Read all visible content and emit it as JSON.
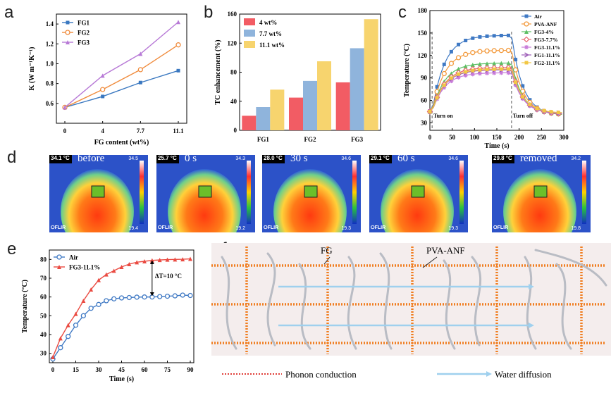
{
  "panel_labels": {
    "a": "a",
    "b": "b",
    "c": "c",
    "d": "d",
    "e": "e",
    "f": "f"
  },
  "colors": {
    "fg1": "#3a78c0",
    "fg2": "#f08b3c",
    "fg3": "#b779d6",
    "bar1": "#f25c64",
    "bar2": "#8fb4dc",
    "bar3": "#f7d46e",
    "air": "#3f79c4",
    "fg3_111": "#ea4a41",
    "fg_line": "#f07e22",
    "water": "#9fd0ee",
    "fiber": "#b9bcc4"
  },
  "chart_data": [
    {
      "id": "a",
      "type": "line",
      "xlabel": "FG content (wt%)",
      "ylabel": "K (W m⁻¹K⁻¹)",
      "categories": [
        "0",
        "4",
        "7.7",
        "11.1"
      ],
      "ylim": [
        0.4,
        1.5
      ],
      "yticks": [
        "0.6",
        "0.8",
        "1.0",
        "1.2",
        "1.4"
      ],
      "series": [
        {
          "name": "FG1",
          "values": [
            0.56,
            0.67,
            0.81,
            0.93
          ]
        },
        {
          "name": "FG2",
          "values": [
            0.56,
            0.74,
            0.94,
            1.19
          ]
        },
        {
          "name": "FG3",
          "values": [
            0.56,
            0.88,
            1.1,
            1.42
          ]
        }
      ]
    },
    {
      "id": "b",
      "type": "bar",
      "ylabel": "TC enhancement (%)",
      "categories": [
        "FG1",
        "FG2",
        "FG3"
      ],
      "ylim": [
        0,
        160
      ],
      "yticks": [
        "0",
        "40",
        "80",
        "120",
        "160"
      ],
      "series": [
        {
          "name": "4 wt%",
          "values": [
            20,
            45,
            66
          ]
        },
        {
          "name": "7.7 wt%",
          "values": [
            32,
            68,
            113
          ]
        },
        {
          "name": "11.1 wt%",
          "values": [
            56,
            95,
            153
          ]
        }
      ]
    },
    {
      "id": "c",
      "type": "line",
      "xlabel": "Time (s)",
      "ylabel": "Temperature (°C)",
      "xlim": [
        0,
        300
      ],
      "ylim": [
        20,
        180
      ],
      "xticks": [
        "0",
        "50",
        "100",
        "150",
        "200",
        "250",
        "300"
      ],
      "yticks": [
        "30",
        "60",
        "90",
        "120",
        "150",
        "180"
      ],
      "annotations": [
        "Turn on",
        "Turn off"
      ],
      "series": [
        {
          "name": "Air",
          "color": "#3f79c4",
          "plateau": 147
        },
        {
          "name": "PVA-ANF",
          "color": "#f39a3c",
          "plateau": 127
        },
        {
          "name": "FG3-4%",
          "color": "#5cbf63",
          "plateau": 110
        },
        {
          "name": "FG3-7.7%",
          "color": "#e8686f",
          "plateau": 104
        },
        {
          "name": "FG3-11.1%",
          "color": "#c77bd9",
          "plateau": 97
        },
        {
          "name": "FG1-11.1%",
          "color": "#9b59b6",
          "plateau": 101
        },
        {
          "name": "FG2-11.1%",
          "color": "#f2c744",
          "plateau": 102
        }
      ]
    },
    {
      "id": "e",
      "type": "line",
      "xlabel": "Time (s)",
      "ylabel": "Temperature (°C)",
      "x": [
        0,
        5,
        10,
        15,
        20,
        25,
        30,
        35,
        40,
        45,
        50,
        55,
        60,
        65,
        70,
        75,
        80,
        85,
        90
      ],
      "xlim": [
        0,
        90
      ],
      "ylim": [
        25,
        85
      ],
      "xticks": [
        "0",
        "15",
        "30",
        "45",
        "60",
        "75",
        "90"
      ],
      "yticks": [
        "30",
        "40",
        "50",
        "60",
        "70",
        "80"
      ],
      "annotations": [
        "ΔT=10 °C"
      ],
      "series": [
        {
          "name": "Air",
          "values": [
            27,
            33,
            39,
            45,
            50,
            54,
            56,
            58,
            59,
            59.5,
            59.7,
            59.9,
            60,
            60,
            60.2,
            60.4,
            60.6,
            61,
            60.8
          ]
        },
        {
          "name": "FG3-11.1%",
          "values": [
            28,
            38,
            45,
            51,
            58,
            64,
            69,
            72,
            74,
            76,
            77.5,
            78.5,
            79,
            79.5,
            79.7,
            79.9,
            80,
            80.1,
            80.3
          ]
        }
      ]
    }
  ],
  "thermal": [
    {
      "corner": "34.1 °C",
      "label": "before",
      "max": "34.5",
      "min": "19.4",
      "logo": "⭘FLIR"
    },
    {
      "corner": "25.7 °C",
      "label": "0 s",
      "max": "34.3",
      "min": "19.2",
      "logo": "⭘FLIR"
    },
    {
      "corner": "28.0 °C",
      "label": "30 s",
      "max": "34.6",
      "min": "19.3",
      "logo": "⭘FLIR"
    },
    {
      "corner": "29.1 °C",
      "label": "60 s",
      "max": "34.6",
      "min": "19.3",
      "logo": "⭘FLIR"
    },
    {
      "corner": "29.8 °C",
      "label": "removed",
      "max": "34.2",
      "min": "19.8",
      "logo": "⭘FLIR"
    }
  ],
  "schematic": {
    "fg_label": "FG",
    "pva_label": "PVA-ANF",
    "legend_phonon": "Phonon conduction",
    "legend_water": "Water diffusion"
  }
}
